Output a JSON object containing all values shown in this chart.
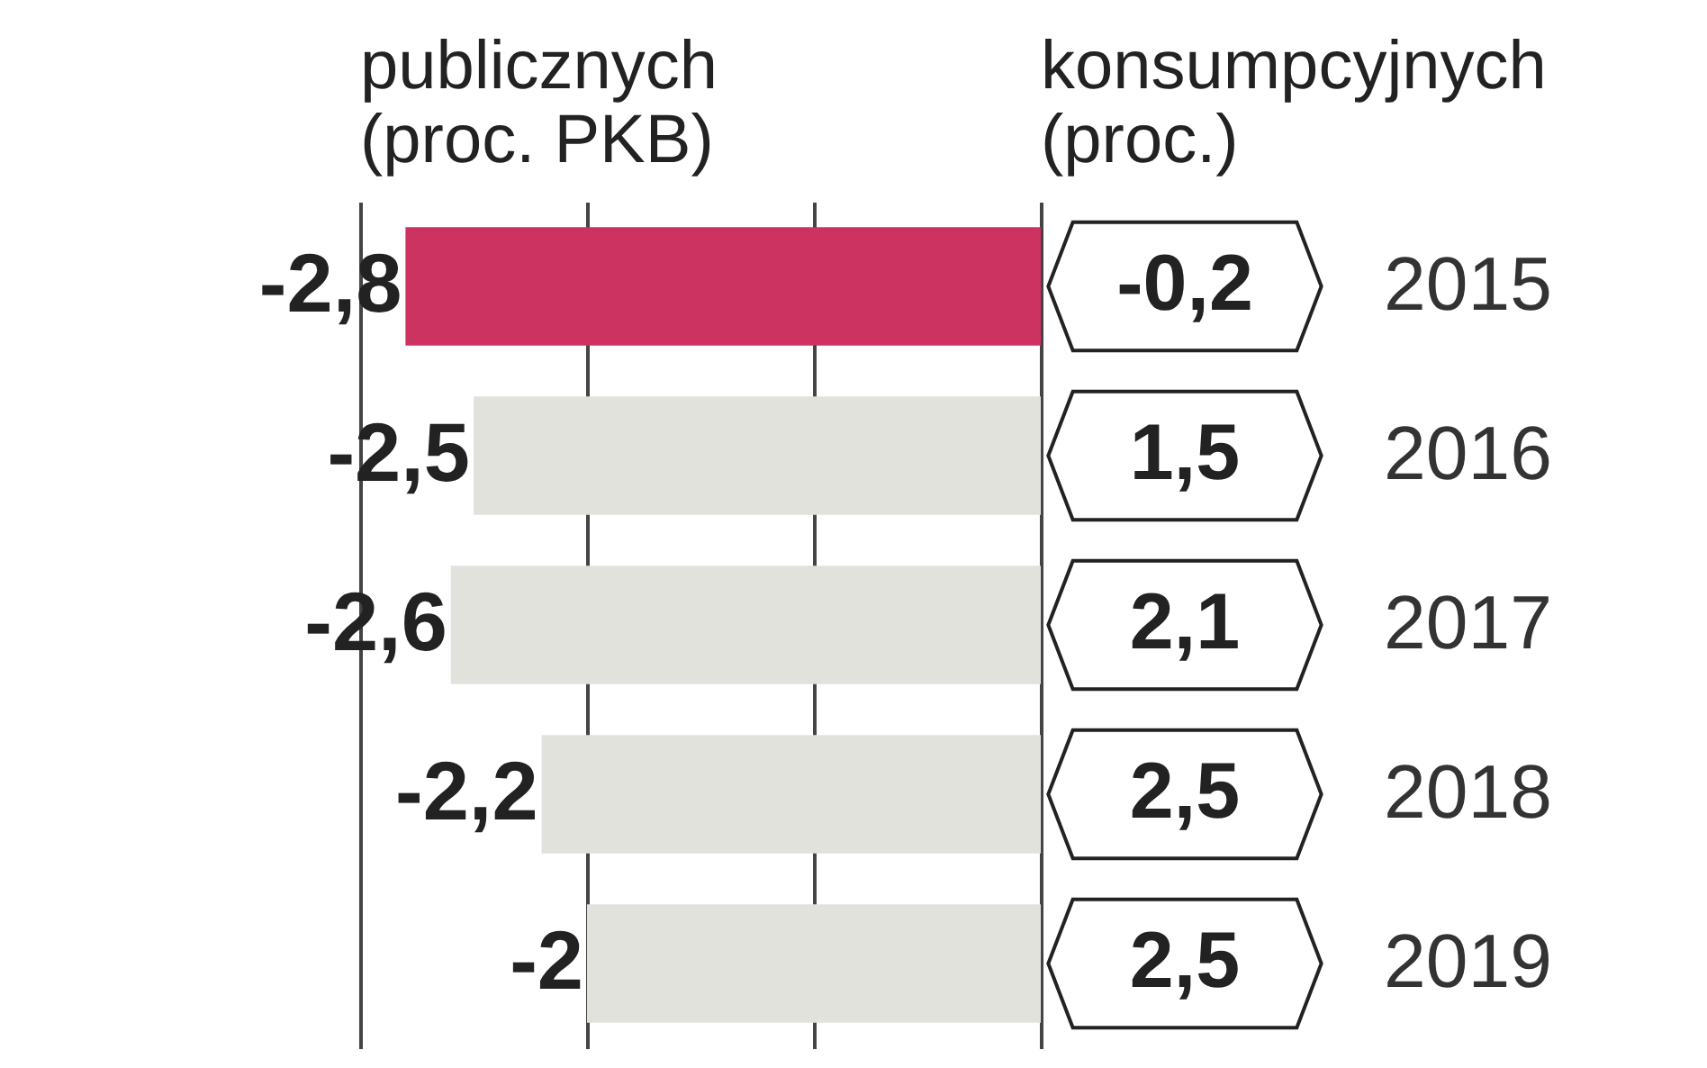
{
  "chart_data": [
    {
      "type": "bar",
      "orientation": "horizontal",
      "title": "publicznych",
      "subtitle": "(proc. PKB)",
      "categories": [
        "2015",
        "2016",
        "2017",
        "2018",
        "2019"
      ],
      "values": [
        -2.8,
        -2.5,
        -2.6,
        -2.2,
        -2
      ],
      "value_labels": [
        "-2,8",
        "-2,5",
        "-2,6",
        "-2,2",
        "-2"
      ],
      "colors": [
        "#cc3360",
        "#e2e2dc",
        "#e2e2dc",
        "#e2e2dc",
        "#e2e2dc"
      ],
      "xlim": [
        -3,
        0
      ],
      "xticks": [
        -3,
        -2,
        -1,
        0
      ],
      "grid": "x",
      "tick_labels": "y"
    },
    {
      "type": "other",
      "title": "konsumpcyjnych",
      "subtitle": "(proc.)",
      "values": [
        -0.2,
        1.5,
        2.1,
        2.5,
        2.5
      ],
      "value_labels": [
        "-0,2",
        "1,5",
        "2,1",
        "2,5",
        "2,5"
      ]
    }
  ]
}
